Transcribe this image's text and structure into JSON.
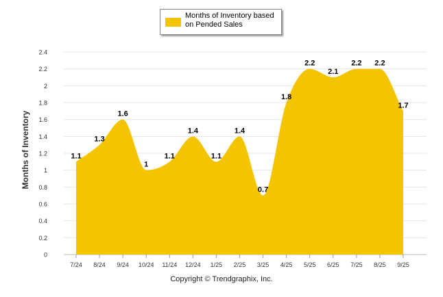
{
  "chart_data": {
    "type": "area",
    "categories": [
      "7/24",
      "8/24",
      "9/24",
      "10/24",
      "11/24",
      "12/24",
      "1/25",
      "2/25",
      "3/25",
      "4/25",
      "5/25",
      "6/25",
      "7/25",
      "8/25",
      "9/25"
    ],
    "series": [
      {
        "name": "Months of Inventory based on Pended Sales",
        "values": [
          1.1,
          1.3,
          1.6,
          1,
          1.1,
          1.4,
          1.1,
          1.4,
          0.7,
          1.8,
          2.2,
          2.1,
          2.2,
          2.2,
          1.7
        ],
        "data_labels": [
          "1.1",
          "1.3",
          "1.6",
          "1",
          "1.1",
          "1.4",
          "1.1",
          "1.4",
          "0.7",
          "1.8",
          "2.2",
          "2.1",
          "2.2",
          "2.2",
          "1.7"
        ]
      }
    ],
    "ylabel": "Months of Inventory",
    "xlabel": "",
    "ylim": [
      0,
      2.4
    ],
    "yticks": [
      "0",
      "0.2",
      "0.4",
      "0.6",
      "0.8",
      "1",
      "1.2",
      "1.4",
      "1.6",
      "1.8",
      "2",
      "2.2",
      "2.4"
    ],
    "grid": true,
    "legend_position": "top-center",
    "fill_color": "#F5C400",
    "caption": "Copyright © Trendgraphix, Inc."
  }
}
